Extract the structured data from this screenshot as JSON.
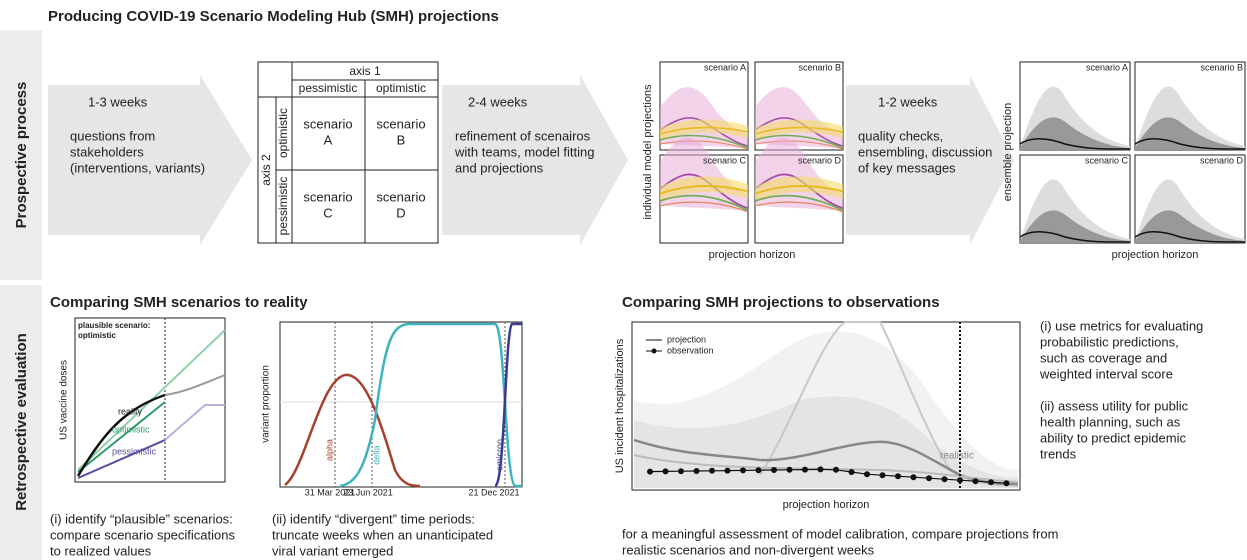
{
  "title": "Producing COVID-19 Scenario Modeling Hub (SMH) projections",
  "sections": [
    "Prospective process",
    "Retrospective evaluation"
  ],
  "steps": [
    {
      "duration": "1-3 weeks",
      "lines": [
        "questions from",
        "stakeholders",
        "(interventions, variants)"
      ]
    },
    {
      "duration": "2-4 weeks",
      "lines": [
        "refinement of scenairos",
        "with teams, model fitting",
        "and projections"
      ]
    },
    {
      "duration": "1-2 weeks",
      "lines": [
        "quality checks,",
        "ensembling, discussion",
        "of key messages"
      ]
    }
  ],
  "matrix": {
    "axis1": "axis 1",
    "axis2": "axis 2",
    "columns": [
      "pessimistic",
      "optimistic"
    ],
    "rows": [
      "optimistic",
      "pessimistic"
    ],
    "cells": [
      [
        "scenario",
        "A"
      ],
      [
        "scenario",
        "B"
      ],
      [
        "scenario",
        "C"
      ],
      [
        "scenario",
        "D"
      ]
    ]
  },
  "individual_projections": {
    "y_label": "individual model projections",
    "panels": [
      "scenario A",
      "scenario B",
      "scenario C",
      "scenario D"
    ],
    "x_label": "projection horizon"
  },
  "ensemble_projections": {
    "y_label": "ensemble projection",
    "panels": [
      "scenario A",
      "scenario B",
      "scenario C",
      "scenario D"
    ],
    "x_label": "projection horizon"
  },
  "reality": {
    "title": "Comparing SMH scenarios to reality",
    "vaccine_plot": {
      "note": [
        "plausible scenario:",
        "optimistic"
      ],
      "y_label": "US vaccine doses",
      "curve_labels": [
        "reality",
        "optimistic",
        "pessimistic"
      ],
      "caption": [
        "(i) identify “plausible” scenarios:",
        "compare scenario specifications",
        "to realized values"
      ]
    },
    "variant_plot": {
      "y_label": "variant proportion",
      "curve_labels": [
        "alpha",
        "delta",
        "omicron"
      ],
      "x_ticks": [
        "31 Mar 2021",
        "23 Jun 2021",
        "21 Dec 2021"
      ],
      "caption": [
        "(ii) identify “divergent” time periods:",
        "truncate weeks when an unanticipated",
        "viral variant emerged"
      ]
    }
  },
  "observations": {
    "title": "Comparing SMH projections to observations",
    "legend": [
      "projection",
      "observation"
    ],
    "y_label": "US incident hospitalizations",
    "x_label": "projection horizon",
    "curve_label": "realistic",
    "notes": [
      [
        "(i) use metrics for evaluating",
        "probabilistic predictions,",
        "such as coverage and",
        "weighted interval score"
      ],
      [
        "(ii) assess utility for public",
        "health planning, such as",
        "ability to predict epidemic",
        "trends"
      ]
    ]
  },
  "footer": [
    "for a meaningful assessment of model calibration, compare projections from",
    "realistic scenarios and non-divergent weeks"
  ]
}
